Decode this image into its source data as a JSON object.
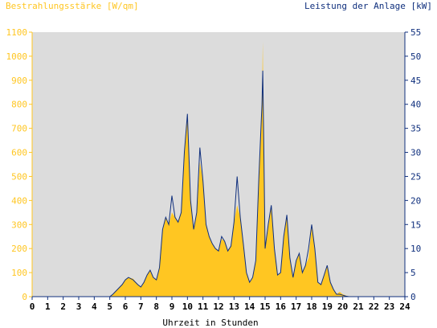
{
  "chart_data": {
    "type": "area",
    "title_left": "Bestrahlungsstärke [W/qm]",
    "title_right": "Leistung der Anlage [kW]",
    "xlabel": "Uhrzeit in Stunden",
    "xlim": [
      0,
      24
    ],
    "ylim_left": [
      0,
      1100
    ],
    "ylim_right": [
      0,
      55
    ],
    "x_ticks": [
      "0",
      "1",
      "2",
      "3",
      "4",
      "5",
      "6",
      "7",
      "8",
      "9",
      "10",
      "11",
      "12",
      "13",
      "14",
      "15",
      "16",
      "17",
      "18",
      "19",
      "20",
      "21",
      "22",
      "23",
      "24"
    ],
    "y_ticks_left": [
      "0",
      "100",
      "200",
      "300",
      "400",
      "500",
      "600",
      "700",
      "800",
      "900",
      "1000",
      "1100"
    ],
    "y_ticks_right": [
      "0",
      "5",
      "10",
      "15",
      "20",
      "25",
      "30",
      "35",
      "40",
      "45",
      "50",
      "55"
    ],
    "grid": false,
    "colors": {
      "plot_background": "#dcdcdc",
      "irradiance_fill": "#ffc622",
      "power_line": "#0f2f7d",
      "left_axis": "#ffc622",
      "right_axis": "#0f2f7d"
    },
    "series": [
      {
        "role": "irradiance",
        "axis": "left",
        "x": [
          0,
          5.0,
          5.2,
          5.5,
          5.8,
          6.0,
          6.2,
          6.5,
          6.8,
          7.0,
          7.2,
          7.4,
          7.6,
          7.8,
          8.0,
          8.2,
          8.4,
          8.6,
          8.8,
          9.0,
          9.2,
          9.4,
          9.6,
          9.8,
          10.0,
          10.2,
          10.4,
          10.6,
          10.8,
          11.0,
          11.2,
          11.4,
          11.6,
          11.8,
          12.0,
          12.2,
          12.4,
          12.6,
          12.8,
          13.0,
          13.2,
          13.4,
          13.6,
          13.8,
          14.0,
          14.2,
          14.4,
          14.6,
          14.8,
          14.85,
          14.9,
          15.0,
          15.2,
          15.4,
          15.6,
          15.8,
          16.0,
          16.2,
          16.4,
          16.6,
          16.8,
          17.0,
          17.2,
          17.4,
          17.6,
          17.8,
          18.0,
          18.2,
          18.4,
          18.6,
          18.8,
          19.0,
          19.2,
          19.4,
          19.6,
          19.8,
          20.0,
          20.2,
          20.4,
          24
        ],
        "y": [
          0,
          0,
          10,
          30,
          50,
          70,
          80,
          75,
          50,
          40,
          60,
          90,
          110,
          80,
          70,
          120,
          280,
          330,
          300,
          350,
          330,
          310,
          350,
          600,
          740,
          400,
          280,
          350,
          560,
          480,
          300,
          250,
          220,
          200,
          190,
          240,
          230,
          190,
          210,
          310,
          380,
          330,
          220,
          100,
          60,
          80,
          150,
          500,
          800,
          1060,
          700,
          200,
          300,
          380,
          200,
          90,
          100,
          250,
          340,
          160,
          80,
          150,
          180,
          100,
          130,
          160,
          290,
          200,
          60,
          50,
          90,
          130,
          60,
          30,
          10,
          20,
          10,
          5,
          0,
          0
        ]
      },
      {
        "role": "power",
        "axis": "right",
        "x": [
          0,
          5.0,
          5.2,
          5.5,
          5.8,
          6.0,
          6.2,
          6.5,
          6.8,
          7.0,
          7.2,
          7.4,
          7.6,
          7.8,
          8.0,
          8.2,
          8.4,
          8.6,
          8.8,
          9.0,
          9.2,
          9.4,
          9.6,
          9.8,
          10.0,
          10.2,
          10.4,
          10.6,
          10.8,
          11.0,
          11.2,
          11.4,
          11.6,
          11.8,
          12.0,
          12.2,
          12.4,
          12.6,
          12.8,
          13.0,
          13.2,
          13.4,
          13.6,
          13.8,
          14.0,
          14.2,
          14.4,
          14.6,
          14.8,
          14.85,
          14.9,
          15.0,
          15.2,
          15.4,
          15.6,
          15.8,
          16.0,
          16.2,
          16.4,
          16.6,
          16.8,
          17.0,
          17.2,
          17.4,
          17.6,
          17.8,
          18.0,
          18.2,
          18.4,
          18.6,
          18.8,
          19.0,
          19.2,
          19.4,
          19.6,
          19.8,
          20.0,
          20.2,
          20.4,
          24
        ],
        "y": [
          0,
          0,
          0.5,
          1.5,
          2.5,
          3.5,
          4,
          3.5,
          2.5,
          2,
          3,
          4.5,
          5.5,
          4,
          3.5,
          6,
          14,
          16.5,
          15,
          21,
          16.5,
          15.5,
          17.5,
          30,
          38,
          20,
          14,
          17.5,
          31,
          24,
          15,
          12.5,
          11,
          10,
          9.5,
          12.5,
          11.5,
          9.5,
          10.5,
          15.5,
          25,
          16.5,
          11,
          5,
          3,
          4,
          7.5,
          25,
          40,
          47,
          35,
          10,
          15,
          19,
          10,
          4.5,
          5,
          12.5,
          17,
          8,
          4,
          7.5,
          9,
          5,
          6.5,
          10,
          15,
          10,
          3,
          2.5,
          4.5,
          6.5,
          3,
          1.5,
          0.5,
          0.5,
          0.3,
          0.1,
          0,
          0
        ]
      }
    ]
  }
}
